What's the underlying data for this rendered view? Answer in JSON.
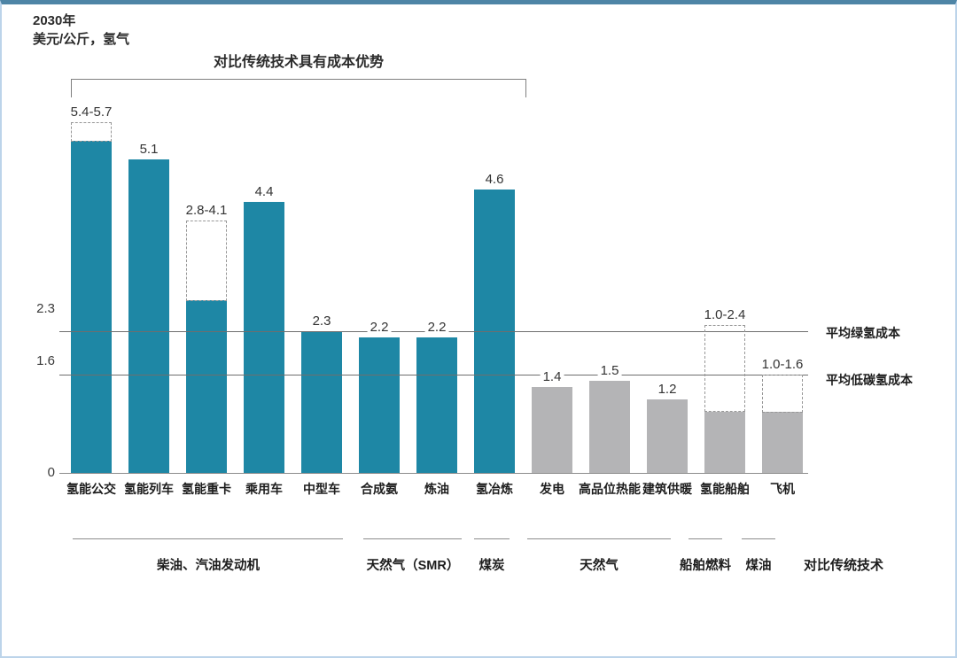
{
  "header": {
    "year": "2030年",
    "unit": "美元/公斤，氢气"
  },
  "annotation": {
    "bracket_label": "对比传统技术具有成本优势"
  },
  "chart_data": {
    "type": "bar",
    "title": "对比传统技术具有成本优势",
    "ylabel": "美元/公斤，氢气",
    "ylim": [
      0,
      6.4
    ],
    "y_ticks": [
      "0",
      "1.6",
      "2.3"
    ],
    "grid": false,
    "legend_position": "none",
    "reference_lines": [
      {
        "value": 2.3,
        "label": "平均绿氢成本"
      },
      {
        "value": 1.6,
        "label": "平均低碳氢成本"
      }
    ],
    "bars": [
      {
        "category": "氢能公交",
        "label": "5.4-5.7",
        "value": 5.4,
        "range_max": 5.7,
        "color_key": "hydrogen"
      },
      {
        "category": "氢能列车",
        "label": "5.1",
        "value": 5.1,
        "range_max": null,
        "color_key": "hydrogen"
      },
      {
        "category": "氢能重卡",
        "label": "2.8-4.1",
        "value": 2.8,
        "range_max": 4.1,
        "color_key": "hydrogen"
      },
      {
        "category": "乘用车",
        "label": "4.4",
        "value": 4.4,
        "range_max": null,
        "color_key": "hydrogen"
      },
      {
        "category": "中型车",
        "label": "2.3",
        "value": 2.3,
        "range_max": null,
        "color_key": "hydrogen"
      },
      {
        "category": "合成氨",
        "label": "2.2",
        "value": 2.2,
        "range_max": null,
        "color_key": "hydrogen"
      },
      {
        "category": "炼油",
        "label": "2.2",
        "value": 2.2,
        "range_max": null,
        "color_key": "hydrogen"
      },
      {
        "category": "氢冶炼",
        "label": "4.6",
        "value": 4.6,
        "range_max": null,
        "color_key": "hydrogen"
      },
      {
        "category": "发电",
        "label": "1.4",
        "value": 1.4,
        "range_max": null,
        "color_key": "other"
      },
      {
        "category": "高品位热能",
        "label": "1.5",
        "value": 1.5,
        "range_max": null,
        "color_key": "other"
      },
      {
        "category": "建筑供暖",
        "label": "1.2",
        "value": 1.2,
        "range_max": null,
        "color_key": "other"
      },
      {
        "category": "氢能船舶",
        "label": "1.0-2.4",
        "value": 1.0,
        "range_max": 2.4,
        "color_key": "other"
      },
      {
        "category": "飞机",
        "label": "1.0-1.6",
        "value": 1.0,
        "range_max": 1.6,
        "color_key": "other"
      }
    ],
    "groups": [
      {
        "label": "柴油、汽油发动机",
        "from": 0,
        "to": 4
      },
      {
        "label": "天然气（SMR）",
        "from": 5,
        "to": 6
      },
      {
        "label": "煤炭",
        "from": 7,
        "to": 7
      },
      {
        "label": "天然气",
        "from": 8,
        "to": 10
      },
      {
        "label": "船舶燃料",
        "from": 11,
        "to": 11
      },
      {
        "label": "煤油",
        "from": 12,
        "to": 12
      }
    ],
    "comparison_axis_label": "对比传统技术",
    "colors": {
      "hydrogen": "#1E87A5",
      "other": "#B4B4B6"
    }
  }
}
